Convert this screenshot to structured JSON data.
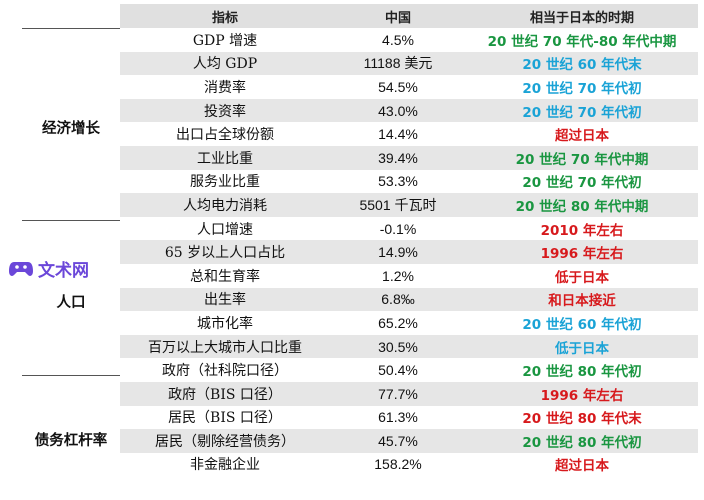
{
  "header": {
    "indicator": "指标",
    "china": "中国",
    "japan_equiv": "相当于日本的时期"
  },
  "categories": {
    "economic_growth": "经济增长",
    "population": "人口",
    "debt_leverage": "债务杠杆率"
  },
  "rows": [
    {
      "indicator": "GDP 增速",
      "china": "4.5%",
      "japan": "20 世纪 70 年代-80 年代中期",
      "color": "#1a9641"
    },
    {
      "indicator": "人均 GDP",
      "china": "11188 美元",
      "japan": "20 世纪 60 年代末",
      "color": "#1aa3d6"
    },
    {
      "indicator": "消费率",
      "china": "54.5%",
      "japan": "20 世纪 70 年代初",
      "color": "#1aa3d6"
    },
    {
      "indicator": "投资率",
      "china": "43.0%",
      "japan": "20 世纪 70 年代初",
      "color": "#1aa3d6"
    },
    {
      "indicator": "出口占全球份额",
      "china": "14.4%",
      "japan": "超过日本",
      "color": "#d7191c"
    },
    {
      "indicator": "工业比重",
      "china": "39.4%",
      "japan": "20 世纪 70 年代中期",
      "color": "#1a9641"
    },
    {
      "indicator": "服务业比重",
      "china": "53.3%",
      "japan": "20 世纪 70 年代初",
      "color": "#1a9641"
    },
    {
      "indicator": "人均电力消耗",
      "china": "5501 千瓦时",
      "japan": "20 世纪 80 年代中期",
      "color": "#1a9641"
    },
    {
      "indicator": "人口增速",
      "china": "-0.1%",
      "japan": "2010 年左右",
      "color": "#d7191c"
    },
    {
      "indicator": "65 岁以上人口占比",
      "china": "14.9%",
      "japan": "1996 年左右",
      "color": "#d7191c"
    },
    {
      "indicator": "总和生育率",
      "china": "1.2%",
      "japan": "低于日本",
      "color": "#d7191c"
    },
    {
      "indicator": "出生率",
      "china": "6.8‰",
      "japan": "和日本接近",
      "color": "#d7191c"
    },
    {
      "indicator": "城市化率",
      "china": "65.2%",
      "japan": "20 世纪 60 年代初",
      "color": "#1aa3d6"
    },
    {
      "indicator": "百万以上大城市人口比重",
      "china": "30.5%",
      "japan": "低于日本",
      "color": "#1aa3d6"
    },
    {
      "indicator": "政府（社科院口径）",
      "china": "50.4%",
      "japan": "20 世纪 80 年代初",
      "color": "#1a9641"
    },
    {
      "indicator": "政府（BIS 口径）",
      "china": "77.7%",
      "japan": "1996 年左右",
      "color": "#d7191c"
    },
    {
      "indicator": "居民（BIS 口径）",
      "china": "61.3%",
      "japan": "20 世纪 80 年代末",
      "color": "#d7191c"
    },
    {
      "indicator": "居民（剔除经营债务）",
      "china": "45.7%",
      "japan": "20 世纪 80 年代初",
      "color": "#1a9641"
    },
    {
      "indicator": "非金融企业",
      "china": "158.2%",
      "japan": "超过日本",
      "color": "#d7191c"
    }
  ],
  "watermark": {
    "text": "文术网",
    "icon": "gamepad-icon",
    "color": "#6b47d9"
  }
}
